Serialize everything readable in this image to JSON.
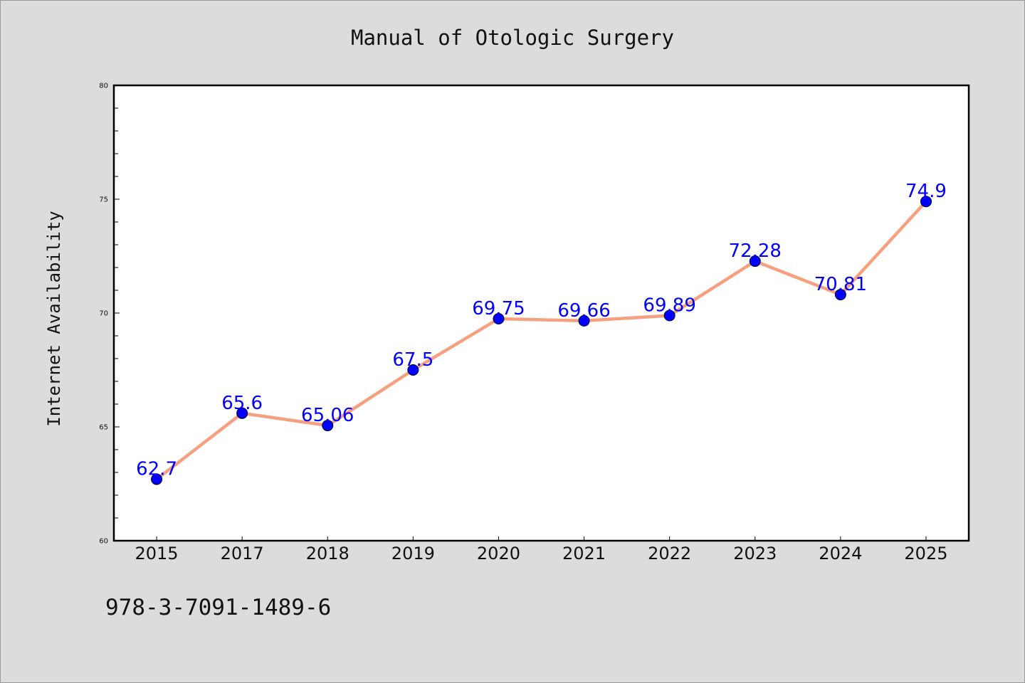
{
  "chart_data": {
    "type": "line",
    "title": "Manual of Otologic Surgery",
    "xlabel": "",
    "ylabel": "Internet Availability",
    "categories": [
      "2015",
      "2017",
      "2018",
      "2019",
      "2020",
      "2021",
      "2022",
      "2023",
      "2024",
      "2025"
    ],
    "series": [
      {
        "values": [
          62.7,
          65.6,
          65.06,
          67.5,
          69.75,
          69.66,
          69.89,
          72.28,
          70.81,
          74.9
        ],
        "data_labels": [
          "62.7",
          "65.6",
          "65.06",
          "67.5",
          "69.75",
          "69.66",
          "69.89",
          "72.28",
          "70.81",
          "74.9"
        ],
        "line_color": "#f5a07f",
        "marker_color": "#0000ff"
      }
    ],
    "ylim": [
      60,
      80
    ],
    "yticks": [
      "60",
      "65",
      "70",
      "75",
      "80"
    ],
    "grid": false,
    "legend": "none"
  },
  "footer": {
    "isbn": "978-3-7091-1489-6"
  },
  "colors": {
    "background": "#dcdcdc",
    "plot_background": "#ffffff",
    "line": "#f5a07f",
    "marker": "#0000ff",
    "data_label": "#0000ff"
  }
}
